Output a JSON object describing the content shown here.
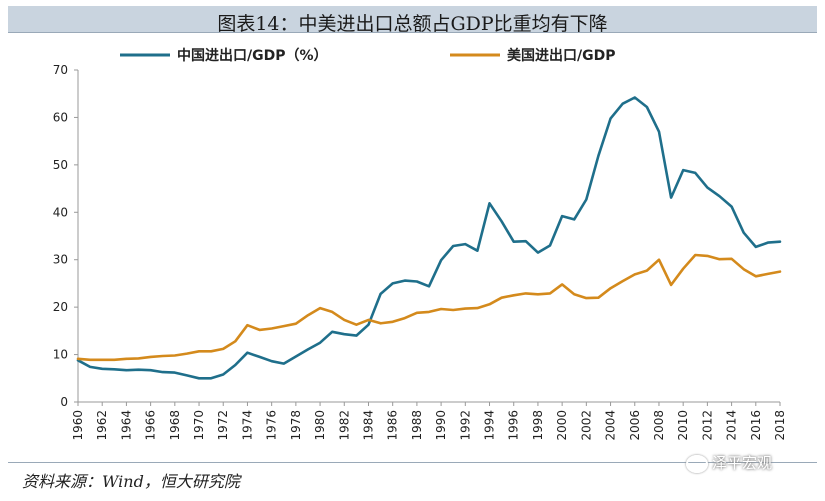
{
  "title": "图表14：中美进出口总额占GDP比重均有下降",
  "source": "资料来源：Wind，恒大研究院",
  "watermark": "泽平宏观",
  "colors": {
    "china": "#1f6f8b",
    "us": "#d48a1c",
    "axis": "#999999"
  },
  "chart_data": {
    "type": "line",
    "ylim": [
      0,
      70
    ],
    "yticks": [
      0,
      10,
      20,
      30,
      40,
      50,
      60,
      70
    ],
    "xlim": [
      1960,
      2018
    ],
    "xticks": [
      1960,
      1962,
      1964,
      1966,
      1968,
      1970,
      1972,
      1974,
      1976,
      1978,
      1980,
      1982,
      1984,
      1986,
      1988,
      1990,
      1992,
      1994,
      1996,
      1998,
      2000,
      2002,
      2004,
      2006,
      2008,
      2010,
      2012,
      2014,
      2016,
      2018
    ],
    "legend_position": "top",
    "x": [
      1960,
      1961,
      1962,
      1963,
      1964,
      1965,
      1966,
      1967,
      1968,
      1969,
      1970,
      1971,
      1972,
      1973,
      1974,
      1975,
      1976,
      1977,
      1978,
      1979,
      1980,
      1981,
      1982,
      1983,
      1984,
      1985,
      1986,
      1987,
      1988,
      1989,
      1990,
      1991,
      1992,
      1993,
      1994,
      1995,
      1996,
      1997,
      1998,
      1999,
      2000,
      2001,
      2002,
      2003,
      2004,
      2005,
      2006,
      2007,
      2008,
      2009,
      2010,
      2011,
      2012,
      2013,
      2014,
      2015,
      2016,
      2017,
      2018
    ],
    "series": [
      {
        "name": "中国进出口/GDP（%）",
        "color_key": "china",
        "values": [
          8.8,
          7.4,
          7.0,
          6.9,
          6.7,
          6.8,
          6.7,
          6.3,
          6.2,
          5.6,
          5.0,
          5.0,
          5.8,
          7.8,
          10.4,
          9.5,
          8.6,
          8.1,
          9.6,
          11.1,
          12.5,
          14.8,
          14.3,
          14.0,
          16.3,
          22.8,
          25.0,
          25.6,
          25.4,
          24.4,
          29.9,
          32.9,
          33.3,
          31.9,
          41.9,
          38.1,
          33.8,
          33.9,
          31.5,
          33.0,
          39.2,
          38.5,
          42.7,
          51.9,
          59.8,
          62.9,
          64.2,
          62.2,
          57.0,
          43.1,
          48.9,
          48.3,
          45.2,
          43.4,
          41.2,
          35.7,
          32.7,
          33.6,
          33.8
        ]
      },
      {
        "name": "美国进出口/GDP",
        "color_key": "us",
        "values": [
          9.1,
          8.9,
          8.9,
          8.9,
          9.1,
          9.2,
          9.5,
          9.7,
          9.8,
          10.2,
          10.7,
          10.7,
          11.2,
          12.8,
          16.2,
          15.2,
          15.5,
          16.0,
          16.5,
          18.3,
          19.8,
          19.0,
          17.3,
          16.3,
          17.3,
          16.6,
          16.9,
          17.7,
          18.8,
          19.0,
          19.6,
          19.4,
          19.7,
          19.8,
          20.6,
          22.0,
          22.5,
          22.9,
          22.7,
          22.9,
          24.8,
          22.7,
          21.9,
          22.0,
          24.0,
          25.5,
          26.9,
          27.7,
          30.0,
          24.7,
          28.1,
          31.0,
          30.8,
          30.1,
          30.2,
          28.0,
          26.5,
          27.0,
          27.5
        ]
      }
    ]
  }
}
